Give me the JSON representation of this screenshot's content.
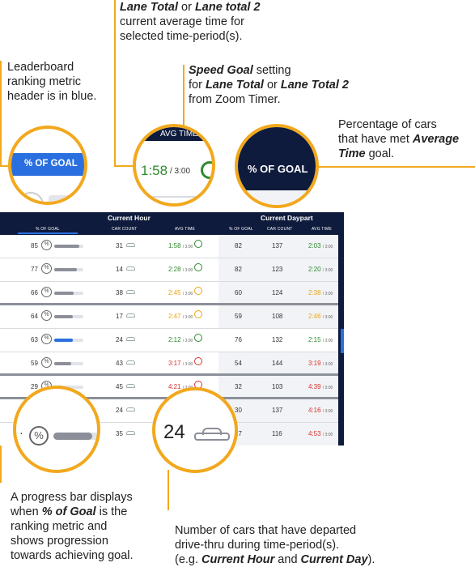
{
  "callouts": {
    "lane_total_line1_a": "Lane Total",
    "lane_total_line1_b": " or ",
    "lane_total_line1_c": "Lane total 2",
    "lane_total_line2": "current average time for",
    "lane_total_line3": "selected time-period(s).",
    "leaderboard_line1": "Leaderboard",
    "leaderboard_line2": "ranking metric",
    "leaderboard_line3": "header is in blue.",
    "speed_goal_a": "Speed Goal",
    "speed_goal_b": " setting",
    "speed_goal_c": "for ",
    "speed_goal_d": "Lane Total",
    "speed_goal_e": " or ",
    "speed_goal_f": "Lane Total 2",
    "speed_goal_g": "from Zoom Timer.",
    "pct_cars_line1": "Percentage of cars",
    "pct_cars_line2a": "that have met ",
    "pct_cars_line2b": "Average",
    "pct_cars_line3a": "Time",
    "pct_cars_line3b": " goal.",
    "progress_line1": "A progress bar displays",
    "progress_line2a": "when ",
    "progress_line2b": "% of Goal",
    "progress_line2c": " is the",
    "progress_line3": "ranking metric and",
    "progress_line4": "shows progression",
    "progress_line5": "towards achieving goal.",
    "carcount_line1": "Number of cars that have departed",
    "carcount_line2": "drive-thru during time-period(s).",
    "carcount_line3a": "(e.g. ",
    "carcount_line3b": "Current Hour",
    "carcount_line3c": " and ",
    "carcount_line3d": "Current Day",
    "carcount_line3e": ")."
  },
  "zoom": {
    "pct_of_goal_header": "% OF GOAL",
    "avg_time_header": "AVG TIME",
    "avg_time_value": "1:58",
    "avg_time_goal": "/ 3:00",
    "pct_of_goal_header_right": "% OF GOAL",
    "car_count_value": "24"
  },
  "table": {
    "group_current_hour": "Current Hour",
    "group_current_daypart": "Current Daypart",
    "col_pct_goal": "% OF GOAL",
    "col_car_count": "CAR COUNT",
    "col_avg_time": "AVG TIME",
    "col_pct_goal_2": "% OF GOAL",
    "col_car_count_2": "CAR COUNT",
    "col_avg_time_2": "AVG TIME",
    "rows": [
      {
        "pct": "85",
        "fill": 0.85,
        "cars": "31",
        "avg": "1:58",
        "goal": "/ 3:00",
        "status": "green",
        "dp_pct": "82",
        "dp_cars": "137",
        "dp_avg": "2:03",
        "dp_goal": "/ 3:00",
        "dp_status": "green"
      },
      {
        "pct": "77",
        "fill": 0.77,
        "cars": "14",
        "avg": "2:28",
        "goal": "/ 3:00",
        "status": "green",
        "dp_pct": "82",
        "dp_cars": "123",
        "dp_avg": "2:20",
        "dp_goal": "/ 3:00",
        "dp_status": "green"
      },
      {
        "pct": "66",
        "fill": 0.66,
        "cars": "38",
        "avg": "2:45",
        "goal": "/ 3:00",
        "status": "orange",
        "dp_pct": "60",
        "dp_cars": "124",
        "dp_avg": "2:38",
        "dp_goal": "/ 3:00",
        "dp_status": "orange"
      },
      {
        "pct": "64",
        "fill": 0.64,
        "cars": "17",
        "avg": "2:47",
        "goal": "/ 3:00",
        "status": "orange",
        "dp_pct": "59",
        "dp_cars": "108",
        "dp_avg": "2:46",
        "dp_goal": "/ 3:00",
        "dp_status": "orange"
      },
      {
        "pct": "63",
        "fill": 0.63,
        "cars": "24",
        "avg": "2:12",
        "goal": "/ 3:00",
        "status": "green",
        "dp_pct": "76",
        "dp_cars": "132",
        "dp_avg": "2:15",
        "dp_goal": "/ 3:00",
        "dp_status": "green"
      },
      {
        "pct": "59",
        "fill": 0.59,
        "cars": "43",
        "avg": "3:17",
        "goal": "/ 3:00",
        "status": "red",
        "dp_pct": "54",
        "dp_cars": "144",
        "dp_avg": "3:19",
        "dp_goal": "/ 3:00",
        "dp_status": "red"
      },
      {
        "pct": "29",
        "fill": 0.29,
        "cars": "45",
        "avg": "4:21",
        "goal": "/ 3:00",
        "status": "red",
        "dp_pct": "32",
        "dp_cars": "103",
        "dp_avg": "4:39",
        "dp_goal": "/ 3:00",
        "dp_status": "red"
      },
      {
        "pct": "",
        "fill": 0,
        "cars": "24",
        "avg": "",
        "goal": "",
        "status": "red",
        "dp_pct": "30",
        "dp_cars": "137",
        "dp_avg": "4:16",
        "dp_goal": "/ 3:00",
        "dp_status": "red"
      },
      {
        "pct": "",
        "fill": 0,
        "cars": "35",
        "avg": "",
        "goal": "",
        "status": "red",
        "dp_pct": "27",
        "dp_cars": "116",
        "dp_avg": "4:53",
        "dp_goal": "/ 3:00",
        "dp_status": "red"
      }
    ]
  },
  "colors": {
    "accent": "#f2a81d",
    "navy": "#0e1b3d",
    "blue": "#2a6fe0",
    "green": "#2f8a2f",
    "orange": "#e8a514",
    "red": "#d9322e"
  }
}
